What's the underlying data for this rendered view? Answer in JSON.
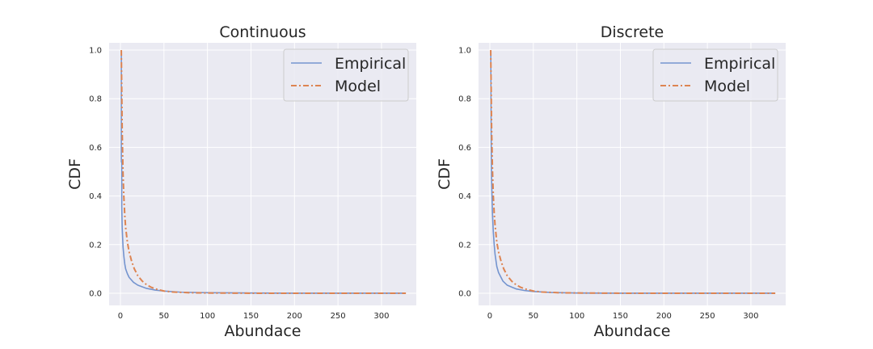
{
  "chart_data": [
    {
      "type": "line",
      "title": "Continuous",
      "xlabel": "Abundace",
      "ylabel": "CDF",
      "xlim": [
        -13,
        340
      ],
      "ylim": [
        -0.05,
        1.03
      ],
      "xticks": [
        0,
        50,
        100,
        150,
        200,
        250,
        300
      ],
      "yticks": [
        0.0,
        0.2,
        0.4,
        0.6,
        0.8,
        1.0
      ],
      "xtick_labels": [
        "0",
        "50",
        "100",
        "150",
        "200",
        "250",
        "300"
      ],
      "ytick_labels": [
        "0.0",
        "0.2",
        "0.4",
        "0.6",
        "0.8",
        "1.0"
      ],
      "grid": true,
      "legend": "top-right",
      "series": [
        {
          "name": "Empirical",
          "color": "#7494cf",
          "style": "solid",
          "x": [
            1,
            1,
            1.5,
            1.5,
            2,
            3,
            4,
            5,
            6,
            8,
            10,
            15,
            20,
            30,
            40,
            50,
            70,
            100,
            150,
            200,
            250,
            300,
            328
          ],
          "y": [
            1.0,
            0.54,
            0.54,
            0.36,
            0.27,
            0.19,
            0.15,
            0.12,
            0.1,
            0.08,
            0.065,
            0.045,
            0.033,
            0.02,
            0.013,
            0.009,
            0.004,
            0.002,
            0.001,
            0.0,
            0.0,
            0.0,
            0.0
          ]
        },
        {
          "name": "Model",
          "color": "#dd8452",
          "style": "dashdot",
          "x": [
            1,
            2,
            3,
            4,
            5,
            6,
            8,
            10,
            13,
            16,
            20,
            25,
            30,
            35,
            40,
            50,
            60,
            80,
            100,
            150,
            200,
            250,
            300,
            328
          ],
          "y": [
            1.0,
            0.67,
            0.49,
            0.39,
            0.32,
            0.27,
            0.21,
            0.17,
            0.13,
            0.1,
            0.072,
            0.05,
            0.035,
            0.025,
            0.018,
            0.009,
            0.005,
            0.002,
            0.001,
            0.0,
            0.0,
            0.0,
            0.0,
            0.0
          ]
        }
      ]
    },
    {
      "type": "line",
      "title": "Discrete",
      "xlabel": "Abundace",
      "ylabel": "CDF",
      "xlim": [
        -13,
        340
      ],
      "ylim": [
        -0.05,
        1.03
      ],
      "xticks": [
        0,
        50,
        100,
        150,
        200,
        250,
        300
      ],
      "yticks": [
        0.0,
        0.2,
        0.4,
        0.6,
        0.8,
        1.0
      ],
      "xtick_labels": [
        "0",
        "50",
        "100",
        "150",
        "200",
        "250",
        "300"
      ],
      "ytick_labels": [
        "0.0",
        "0.2",
        "0.4",
        "0.6",
        "0.8",
        "1.0"
      ],
      "grid": true,
      "legend": "top-right",
      "series": [
        {
          "name": "Empirical",
          "color": "#7494cf",
          "style": "solid",
          "x": [
            1,
            1.5,
            2,
            3,
            4,
            5,
            6,
            8,
            10,
            15,
            20,
            30,
            40,
            50,
            70,
            100,
            150,
            200,
            250,
            300,
            328
          ],
          "y": [
            1.0,
            0.65,
            0.47,
            0.33,
            0.25,
            0.2,
            0.16,
            0.11,
            0.085,
            0.05,
            0.033,
            0.018,
            0.011,
            0.007,
            0.003,
            0.001,
            0.0,
            0.0,
            0.0,
            0.0,
            0.0
          ]
        },
        {
          "name": "Model",
          "color": "#dd8452",
          "style": "dashdot",
          "x": [
            1,
            2,
            3,
            4,
            5,
            6,
            8,
            10,
            13,
            16,
            20,
            25,
            30,
            35,
            40,
            50,
            60,
            80,
            100,
            150,
            200,
            250,
            300,
            328
          ],
          "y": [
            1.0,
            0.68,
            0.51,
            0.4,
            0.33,
            0.28,
            0.21,
            0.17,
            0.13,
            0.1,
            0.072,
            0.05,
            0.035,
            0.025,
            0.018,
            0.009,
            0.005,
            0.002,
            0.001,
            0.0,
            0.0,
            0.0,
            0.0,
            0.0
          ]
        }
      ]
    }
  ]
}
